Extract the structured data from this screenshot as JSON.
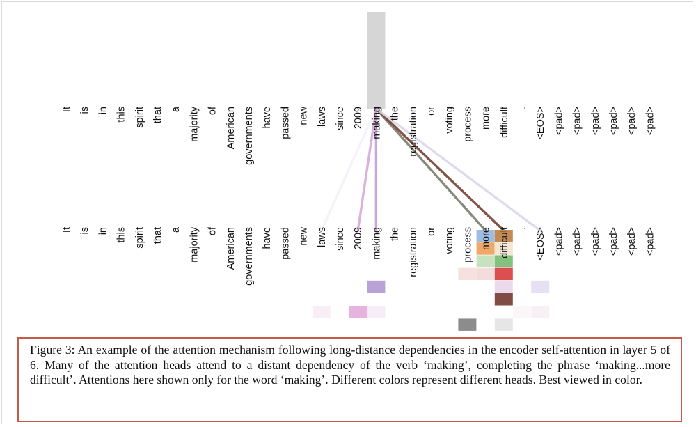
{
  "figure": {
    "tokens": [
      "It",
      "is",
      "in",
      "this",
      "spirit",
      "that",
      "a",
      "majority",
      "of",
      "American",
      "governments",
      "have",
      "passed",
      "new",
      "laws",
      "since",
      "2009",
      "making",
      "the",
      "registration",
      "or",
      "voting",
      "process",
      "more",
      "difficult",
      ".",
      "<EOS>",
      "<pad>",
      "<pad>",
      "<pad>",
      "<pad>",
      "<pad>",
      "<pad>"
    ],
    "highlighted_source_token": "making",
    "attention_lines": [
      {
        "source": "making",
        "target": "laws",
        "color": "#f1e8f6",
        "opacity": 0.6
      },
      {
        "source": "making",
        "target": "2009",
        "color": "#d9a8d9",
        "opacity": 0.9
      },
      {
        "source": "making",
        "target": "making",
        "color": "#c19fd6",
        "opacity": 0.9
      },
      {
        "source": "making",
        "target": "more",
        "color": "#7a7d6a",
        "opacity": 0.9
      },
      {
        "source": "making",
        "target": "difficult",
        "color": "#7b4a3d",
        "opacity": 0.95
      },
      {
        "source": "making",
        "target": "<EOS>",
        "color": "#d8d5ea",
        "opacity": 0.85
      }
    ],
    "head_cells": [
      {
        "token": "more",
        "row": 0,
        "color": "#9ebde0"
      },
      {
        "token": "more",
        "row": 1,
        "color": "#f0a868"
      },
      {
        "token": "more",
        "row": 2,
        "color": "#c8e2bf"
      },
      {
        "token": "more",
        "row": 3,
        "color": "#f4dcdc"
      },
      {
        "token": "difficult",
        "row": 0,
        "color": "#c28a54"
      },
      {
        "token": "difficult",
        "row": 1,
        "color": "#f3e6d3"
      },
      {
        "token": "difficult",
        "row": 2,
        "color": "#82c27e"
      },
      {
        "token": "difficult",
        "row": 3,
        "color": "#db4f4f"
      },
      {
        "token": "difficult",
        "row": 4,
        "color": "#ecd9ec"
      },
      {
        "token": "difficult",
        "row": 5,
        "color": "#7f4d44"
      },
      {
        "token": "difficult",
        "row": 7,
        "color": "#e6e6e6"
      },
      {
        "token": "process",
        "row": 3,
        "color": "#f7e0e0"
      },
      {
        "token": "process",
        "row": 7,
        "color": "#8c8c8c"
      },
      {
        "token": "making",
        "row": 4,
        "color": "#b9a2d6"
      },
      {
        "token": "making",
        "row": 6,
        "color": "#f7edf7"
      },
      {
        "token": "2009",
        "row": 6,
        "color": "#e8b3de"
      },
      {
        "token": "laws",
        "row": 6,
        "color": "#f9eef5"
      },
      {
        "token": "<EOS>",
        "row": 4,
        "color": "#e5e0f2"
      },
      {
        "token": "<EOS>",
        "row": 6,
        "color": "#f8f0f5"
      },
      {
        "token": ".",
        "row": 6,
        "color": "#fbf6f8"
      }
    ]
  },
  "caption": "Figure 3: An example of the attention mechanism following long-distance dependencies in the encoder self-attention in layer 5 of 6. Many of the attention heads attend to a distant dependency of the verb ‘making’, completing the phrase ‘making...more difficult’. Attentions here shown only for the word ‘making’. Different colors represent different heads. Best viewed in color."
}
